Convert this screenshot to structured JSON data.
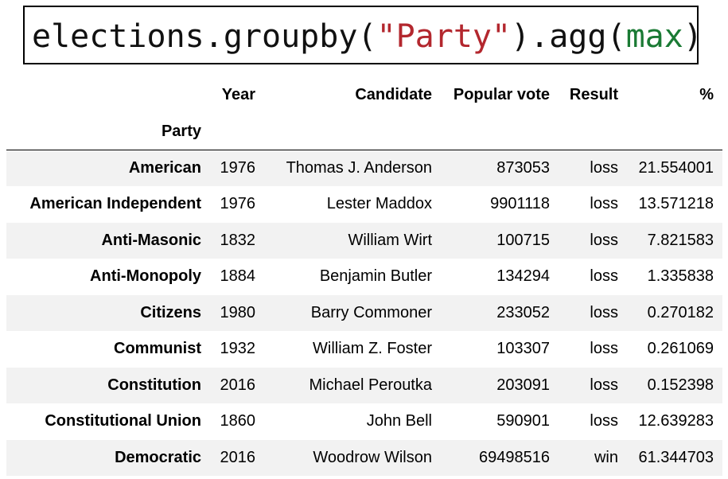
{
  "code": {
    "prefix": "elections.groupby(",
    "arg": "\"Party\"",
    "middle": ").agg(",
    "func": "max",
    "suffix": ")",
    "colors": {
      "plain": "#111111",
      "string": "#b3272e",
      "builtin": "#1a7a34"
    }
  },
  "table": {
    "index_name": "Party",
    "columns": [
      "Year",
      "Candidate",
      "Popular vote",
      "Result",
      "%"
    ],
    "rows": [
      {
        "index": "American",
        "values": [
          "1976",
          "Thomas J. Anderson",
          "873053",
          "loss",
          "21.554001"
        ]
      },
      {
        "index": "American Independent",
        "values": [
          "1976",
          "Lester Maddox",
          "9901118",
          "loss",
          "13.571218"
        ]
      },
      {
        "index": "Anti-Masonic",
        "values": [
          "1832",
          "William Wirt",
          "100715",
          "loss",
          "7.821583"
        ]
      },
      {
        "index": "Anti-Monopoly",
        "values": [
          "1884",
          "Benjamin Butler",
          "134294",
          "loss",
          "1.335838"
        ]
      },
      {
        "index": "Citizens",
        "values": [
          "1980",
          "Barry Commoner",
          "233052",
          "loss",
          "0.270182"
        ]
      },
      {
        "index": "Communist",
        "values": [
          "1932",
          "William Z. Foster",
          "103307",
          "loss",
          "0.261069"
        ]
      },
      {
        "index": "Constitution",
        "values": [
          "2016",
          "Michael Peroutka",
          "203091",
          "loss",
          "0.152398"
        ]
      },
      {
        "index": "Constitutional Union",
        "values": [
          "1860",
          "John Bell",
          "590901",
          "loss",
          "12.639283"
        ]
      },
      {
        "index": "Democratic",
        "values": [
          "2016",
          "Woodrow Wilson",
          "69498516",
          "win",
          "61.344703"
        ]
      }
    ],
    "stripe_color": "#f2f2f2"
  }
}
